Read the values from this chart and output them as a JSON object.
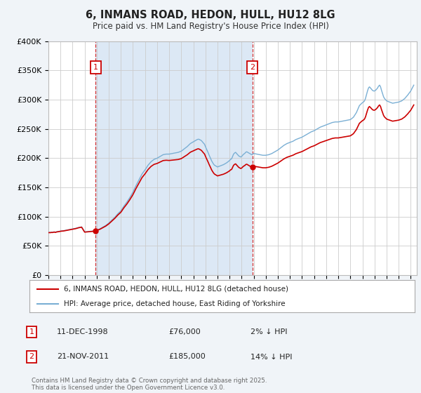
{
  "title_line1": "6, INMANS ROAD, HEDON, HULL, HU12 8LG",
  "title_line2": "Price paid vs. HM Land Registry's House Price Index (HPI)",
  "ylim": [
    0,
    400000
  ],
  "yticks": [
    0,
    50000,
    100000,
    150000,
    200000,
    250000,
    300000,
    350000,
    400000
  ],
  "ytick_labels": [
    "£0",
    "£50K",
    "£100K",
    "£150K",
    "£200K",
    "£250K",
    "£300K",
    "£350K",
    "£400K"
  ],
  "sale1_date": "11-DEC-1998",
  "sale1_year": 1998.92,
  "sale1_price": 76000,
  "sale1_label": "1",
  "sale1_pct": "2% ↓ HPI",
  "sale2_date": "21-NOV-2011",
  "sale2_year": 2011.88,
  "sale2_price": 185000,
  "sale2_label": "2",
  "sale2_pct": "14% ↓ HPI",
  "legend_line1": "6, INMANS ROAD, HEDON, HULL, HU12 8LG (detached house)",
  "legend_line2": "HPI: Average price, detached house, East Riding of Yorkshire",
  "footer": "Contains HM Land Registry data © Crown copyright and database right 2025.\nThis data is licensed under the Open Government Licence v3.0.",
  "red_color": "#cc0000",
  "blue_color": "#7aafd4",
  "shade_color": "#dce8f5",
  "background_color": "#f0f4f8",
  "plot_background": "#ffffff",
  "grid_color": "#cccccc",
  "hpi_anchors_x": [
    1995.0,
    1995.08,
    1995.17,
    1995.25,
    1995.33,
    1995.42,
    1995.5,
    1995.58,
    1995.67,
    1995.75,
    1995.83,
    1995.92,
    1996.0,
    1996.25,
    1996.5,
    1996.75,
    1997.0,
    1997.25,
    1997.5,
    1997.75,
    1998.0,
    1998.25,
    1998.5,
    1998.75,
    1999.0,
    1999.25,
    1999.5,
    1999.75,
    2000.0,
    2000.25,
    2000.5,
    2000.75,
    2001.0,
    2001.25,
    2001.5,
    2001.75,
    2002.0,
    2002.25,
    2002.5,
    2002.75,
    2003.0,
    2003.25,
    2003.5,
    2003.75,
    2004.0,
    2004.25,
    2004.5,
    2004.75,
    2005.0,
    2005.25,
    2005.5,
    2005.75,
    2006.0,
    2006.25,
    2006.5,
    2006.75,
    2007.0,
    2007.08,
    2007.17,
    2007.25,
    2007.33,
    2007.42,
    2007.5,
    2007.58,
    2007.67,
    2007.75,
    2007.83,
    2007.92,
    2008.0,
    2008.08,
    2008.17,
    2008.25,
    2008.33,
    2008.42,
    2008.5,
    2008.58,
    2008.67,
    2008.75,
    2008.83,
    2008.92,
    2009.0,
    2009.25,
    2009.5,
    2009.75,
    2010.0,
    2010.08,
    2010.17,
    2010.25,
    2010.33,
    2010.42,
    2010.5,
    2010.58,
    2010.67,
    2010.75,
    2010.83,
    2010.92,
    2011.0,
    2011.08,
    2011.17,
    2011.25,
    2011.33,
    2011.42,
    2011.5,
    2011.58,
    2011.67,
    2011.75,
    2011.83,
    2011.92,
    2012.0,
    2012.25,
    2012.5,
    2012.75,
    2013.0,
    2013.25,
    2013.5,
    2013.75,
    2014.0,
    2014.25,
    2014.5,
    2014.75,
    2015.0,
    2015.25,
    2015.5,
    2015.75,
    2016.0,
    2016.25,
    2016.5,
    2016.75,
    2017.0,
    2017.25,
    2017.5,
    2017.75,
    2018.0,
    2018.25,
    2018.5,
    2018.75,
    2019.0,
    2019.25,
    2019.5,
    2019.75,
    2020.0,
    2020.25,
    2020.5,
    2020.75,
    2021.0,
    2021.08,
    2021.17,
    2021.25,
    2021.33,
    2021.42,
    2021.5,
    2021.58,
    2021.67,
    2021.75,
    2021.83,
    2021.92,
    2022.0,
    2022.08,
    2022.17,
    2022.25,
    2022.33,
    2022.42,
    2022.5,
    2022.58,
    2022.67,
    2022.75,
    2022.83,
    2022.92,
    2023.0,
    2023.25,
    2023.5,
    2023.75,
    2024.0,
    2024.25,
    2024.5,
    2024.75,
    2025.0,
    2025.25
  ],
  "hpi_anchors_y": [
    73000,
    73200,
    73100,
    73500,
    73300,
    73800,
    74000,
    73500,
    74200,
    74500,
    74800,
    75000,
    75500,
    76000,
    77000,
    78000,
    79000,
    80000,
    81500,
    82500,
    74000,
    74500,
    75000,
    75500,
    77000,
    79000,
    82000,
    85000,
    89000,
    94000,
    99000,
    105000,
    110000,
    118000,
    125000,
    133000,
    142000,
    153000,
    163000,
    173000,
    180000,
    188000,
    194000,
    198000,
    200000,
    203000,
    206000,
    207000,
    207000,
    208000,
    209000,
    210000,
    212000,
    216000,
    220000,
    225000,
    228000,
    229000,
    230000,
    231000,
    232000,
    232500,
    232000,
    231000,
    230000,
    228000,
    226000,
    224000,
    220000,
    216000,
    212000,
    208000,
    204000,
    200000,
    196000,
    193000,
    190000,
    188000,
    187000,
    186000,
    185000,
    187000,
    189000,
    192000,
    196000,
    198000,
    199000,
    203000,
    207000,
    209000,
    210000,
    208000,
    206000,
    204000,
    203000,
    202000,
    203000,
    205000,
    207000,
    208000,
    210000,
    211000,
    210000,
    209000,
    208000,
    207000,
    206000,
    207000,
    208000,
    207000,
    206000,
    205000,
    205000,
    206000,
    208000,
    211000,
    214000,
    218000,
    222000,
    225000,
    227000,
    229000,
    232000,
    234000,
    236000,
    239000,
    242000,
    245000,
    247000,
    250000,
    253000,
    255000,
    257000,
    259000,
    261000,
    262000,
    262000,
    263000,
    264000,
    265000,
    266000,
    270000,
    278000,
    290000,
    295000,
    296000,
    298000,
    302000,
    308000,
    315000,
    320000,
    322000,
    320000,
    318000,
    316000,
    315000,
    315000,
    316000,
    318000,
    320000,
    323000,
    325000,
    322000,
    316000,
    310000,
    305000,
    302000,
    300000,
    298000,
    296000,
    294000,
    295000,
    296000,
    298000,
    302000,
    308000,
    315000,
    325000
  ]
}
